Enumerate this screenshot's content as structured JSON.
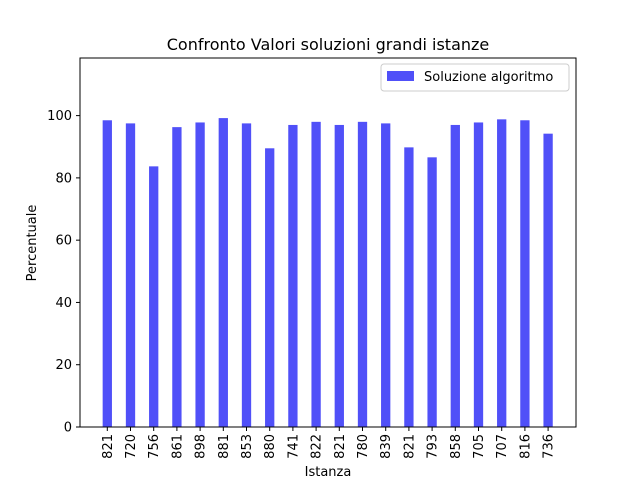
{
  "chart_data": {
    "type": "bar",
    "title": "Confronto Valori soluzioni grandi istanze",
    "xlabel": "Istanza",
    "ylabel": "Percentuale",
    "categories": [
      "821",
      "720",
      "756",
      "861",
      "898",
      "881",
      "853",
      "880",
      "741",
      "822",
      "821",
      "780",
      "839",
      "821",
      "793",
      "858",
      "705",
      "707",
      "816",
      "736"
    ],
    "series": [
      {
        "name": "Soluzione algoritmo",
        "color": "#5050f8",
        "values": [
          98.5,
          97.5,
          83.7,
          96.3,
          97.8,
          99.2,
          97.5,
          89.5,
          97.0,
          98.0,
          97.0,
          98.0,
          97.5,
          89.8,
          86.6,
          97.0,
          97.8,
          98.8,
          98.5,
          94.2
        ]
      }
    ],
    "ylim": [
      0,
      118.5
    ],
    "yticks": [
      0,
      20,
      40,
      60,
      80,
      100
    ],
    "grid": false,
    "legend_position": "top-right"
  }
}
